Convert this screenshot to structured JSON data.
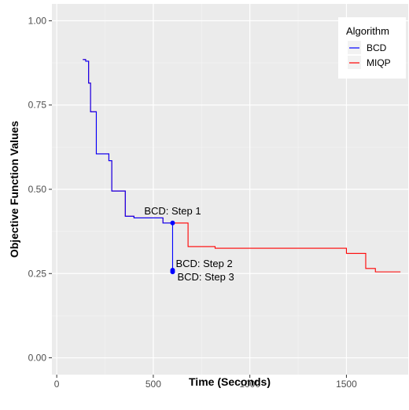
{
  "chart_data": {
    "type": "line",
    "xlabel": "Time (Seconds)",
    "ylabel": "Objective Function Values",
    "xlim": [
      -25,
      1820
    ],
    "ylim": [
      -0.05,
      1.05
    ],
    "x_ticks": [
      0,
      500,
      1000,
      1500
    ],
    "y_ticks": [
      0.0,
      0.25,
      0.5,
      0.75,
      1.0
    ],
    "x_tick_labels": [
      "0",
      "500",
      "1000",
      "1500"
    ],
    "y_tick_labels": [
      "0.00",
      "0.25",
      "0.50",
      "0.75",
      "1.00"
    ],
    "grid": true,
    "legend": {
      "title": "Algorithm",
      "position": "top-right"
    },
    "series": [
      {
        "name": "BCD",
        "color": "#0000ff",
        "step": true,
        "x": [
          135,
          150,
          165,
          175,
          205,
          250,
          270,
          285,
          340,
          355,
          400,
          550,
          600,
          600,
          600
        ],
        "y": [
          0.885,
          0.88,
          0.815,
          0.73,
          0.605,
          0.605,
          0.585,
          0.495,
          0.495,
          0.42,
          0.415,
          0.4,
          0.4,
          0.26,
          0.255
        ]
      },
      {
        "name": "MIQP",
        "color": "#ff0000",
        "step": true,
        "x": [
          135,
          150,
          165,
          175,
          205,
          250,
          270,
          285,
          340,
          355,
          400,
          550,
          620,
          680,
          820,
          1500,
          1600,
          1650,
          1780
        ],
        "y": [
          0.885,
          0.88,
          0.815,
          0.73,
          0.605,
          0.605,
          0.585,
          0.495,
          0.495,
          0.42,
          0.415,
          0.4,
          0.4,
          0.33,
          0.325,
          0.31,
          0.265,
          0.255,
          0.255
        ]
      }
    ],
    "annotations": [
      {
        "text": "BCD: Step 1",
        "x": 600,
        "y": 0.4
      },
      {
        "text": "BCD: Step 2",
        "x": 600,
        "y": 0.26
      },
      {
        "text": "BCD: Step 3",
        "x": 600,
        "y": 0.255
      }
    ]
  }
}
